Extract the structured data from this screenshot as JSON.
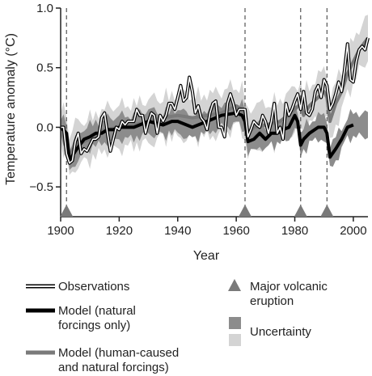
{
  "chart_data": {
    "type": "line",
    "title": "",
    "xlabel": "Year",
    "ylabel": "Temperature anomaly (°C)",
    "xlim": [
      1900,
      2005
    ],
    "ylim": [
      -0.75,
      1.0
    ],
    "x_ticks": [
      1900,
      1920,
      1940,
      1960,
      1980,
      2000
    ],
    "y_ticks": [
      1.0,
      0.5,
      0.0,
      -0.5
    ],
    "y_tick_labels": [
      "1.0",
      "0.5",
      "0.0",
      "−0.5"
    ],
    "grid": false,
    "volcanic_eruptions": [
      1902,
      1963,
      1982,
      1991
    ],
    "series": [
      {
        "name": "Observations",
        "color": "#000000",
        "style": "outlined",
        "x": [
          1900,
          1901,
          1902,
          1903,
          1904,
          1905,
          1906,
          1907,
          1908,
          1909,
          1910,
          1911,
          1912,
          1913,
          1914,
          1915,
          1916,
          1917,
          1918,
          1919,
          1920,
          1921,
          1922,
          1923,
          1924,
          1925,
          1926,
          1927,
          1928,
          1929,
          1930,
          1931,
          1932,
          1933,
          1934,
          1935,
          1936,
          1937,
          1938,
          1939,
          1940,
          1941,
          1942,
          1943,
          1944,
          1945,
          1946,
          1947,
          1948,
          1949,
          1950,
          1951,
          1952,
          1953,
          1954,
          1955,
          1956,
          1957,
          1958,
          1959,
          1960,
          1961,
          1962,
          1963,
          1964,
          1965,
          1966,
          1967,
          1968,
          1969,
          1970,
          1971,
          1972,
          1973,
          1974,
          1975,
          1976,
          1977,
          1978,
          1979,
          1980,
          1981,
          1982,
          1983,
          1984,
          1985,
          1986,
          1987,
          1988,
          1989,
          1990,
          1991,
          1992,
          1993,
          1994,
          1995,
          1996,
          1997,
          1998,
          1999,
          2000,
          2001,
          2002,
          2003,
          2004,
          2005
        ],
        "values": [
          0.0,
          0.0,
          -0.22,
          -0.3,
          -0.28,
          -0.12,
          -0.05,
          -0.22,
          -0.18,
          -0.2,
          -0.15,
          -0.1,
          -0.1,
          -0.08,
          0.08,
          0.12,
          -0.05,
          -0.2,
          -0.1,
          0.0,
          -0.02,
          0.05,
          0.02,
          0.05,
          0.05,
          0.05,
          0.15,
          0.1,
          0.1,
          -0.05,
          0.05,
          0.12,
          0.1,
          -0.05,
          0.1,
          0.05,
          0.1,
          0.2,
          0.2,
          0.15,
          0.25,
          0.35,
          0.22,
          0.25,
          0.42,
          0.3,
          0.12,
          0.18,
          0.08,
          0.05,
          -0.02,
          0.12,
          0.2,
          0.22,
          0.0,
          0.0,
          -0.08,
          0.2,
          0.28,
          0.2,
          0.1,
          0.15,
          0.15,
          0.15,
          -0.08,
          -0.02,
          0.05,
          0.02,
          0.0,
          0.1,
          0.05,
          -0.05,
          0.05,
          0.2,
          -0.05,
          0.0,
          -0.1,
          0.2,
          0.1,
          0.15,
          0.22,
          0.28,
          0.15,
          0.3,
          0.12,
          0.1,
          0.15,
          0.3,
          0.35,
          0.25,
          0.4,
          0.35,
          0.15,
          0.2,
          0.28,
          0.38,
          0.3,
          0.48,
          0.7,
          0.4,
          0.38,
          0.55,
          0.65,
          0.68,
          0.65,
          0.75
        ]
      },
      {
        "name": "Model (natural forcings only)",
        "color": "#000000",
        "x": [
          1900,
          1902,
          1903,
          1905,
          1908,
          1910,
          1912,
          1914,
          1916,
          1918,
          1920,
          1925,
          1930,
          1935,
          1938,
          1940,
          1945,
          1950,
          1955,
          1960,
          1962,
          1963,
          1964,
          1966,
          1968,
          1970,
          1972,
          1974,
          1976,
          1978,
          1980,
          1981,
          1982,
          1983,
          1985,
          1988,
          1990,
          1991,
          1992,
          1994,
          1996,
          1998,
          2000
        ],
        "values": [
          0.0,
          -0.05,
          -0.28,
          -0.2,
          -0.1,
          -0.08,
          -0.05,
          -0.05,
          -0.02,
          -0.02,
          0.0,
          0.0,
          0.05,
          0.02,
          0.05,
          0.05,
          0.0,
          0.05,
          0.1,
          0.12,
          0.1,
          0.05,
          -0.12,
          -0.1,
          -0.05,
          -0.1,
          -0.05,
          -0.05,
          -0.02,
          0.0,
          0.1,
          0.05,
          -0.15,
          -0.1,
          -0.05,
          0.0,
          0.0,
          -0.05,
          -0.25,
          -0.18,
          -0.1,
          0.0,
          0.02
        ]
      },
      {
        "name": "Model (human-caused and natural forcings)",
        "color": "#7a7a7a",
        "x": [
          1900,
          1902,
          1903,
          1905,
          1910,
          1915,
          1920,
          1925,
          1930,
          1935,
          1940,
          1945,
          1950,
          1955,
          1960,
          1962,
          1963,
          1964,
          1966,
          1970,
          1975,
          1980,
          1982,
          1983,
          1985,
          1990,
          1991,
          1992,
          1994,
          1996,
          1998,
          2000,
          2002,
          2005
        ],
        "values": [
          0.0,
          -0.05,
          -0.25,
          -0.15,
          -0.1,
          -0.02,
          0.0,
          0.02,
          0.05,
          0.08,
          0.1,
          0.08,
          0.1,
          0.12,
          0.18,
          0.15,
          0.05,
          -0.05,
          0.0,
          0.02,
          0.05,
          0.15,
          0.2,
          0.1,
          0.18,
          0.3,
          0.25,
          0.05,
          0.2,
          0.3,
          0.45,
          0.55,
          0.65,
          0.75
        ]
      }
    ],
    "legend": {
      "placement": "bottom",
      "items": [
        {
          "key": "obs",
          "label_lines": [
            "Observations"
          ]
        },
        {
          "key": "natural",
          "label_lines": [
            "Model (natural",
            "forcings only)"
          ]
        },
        {
          "key": "combined",
          "label_lines": [
            "Model (human-caused",
            "and natural forcings)"
          ]
        },
        {
          "key": "volcano",
          "label_lines": [
            "Major volcanic",
            "eruption"
          ]
        },
        {
          "key": "uncertainty",
          "label_lines": [
            "Uncertainty"
          ]
        }
      ]
    },
    "colors": {
      "band_light": "#d4d4d4",
      "band_dark": "#8c8c8c",
      "triangle": "#7a7a7a",
      "axis": "#222222"
    }
  }
}
